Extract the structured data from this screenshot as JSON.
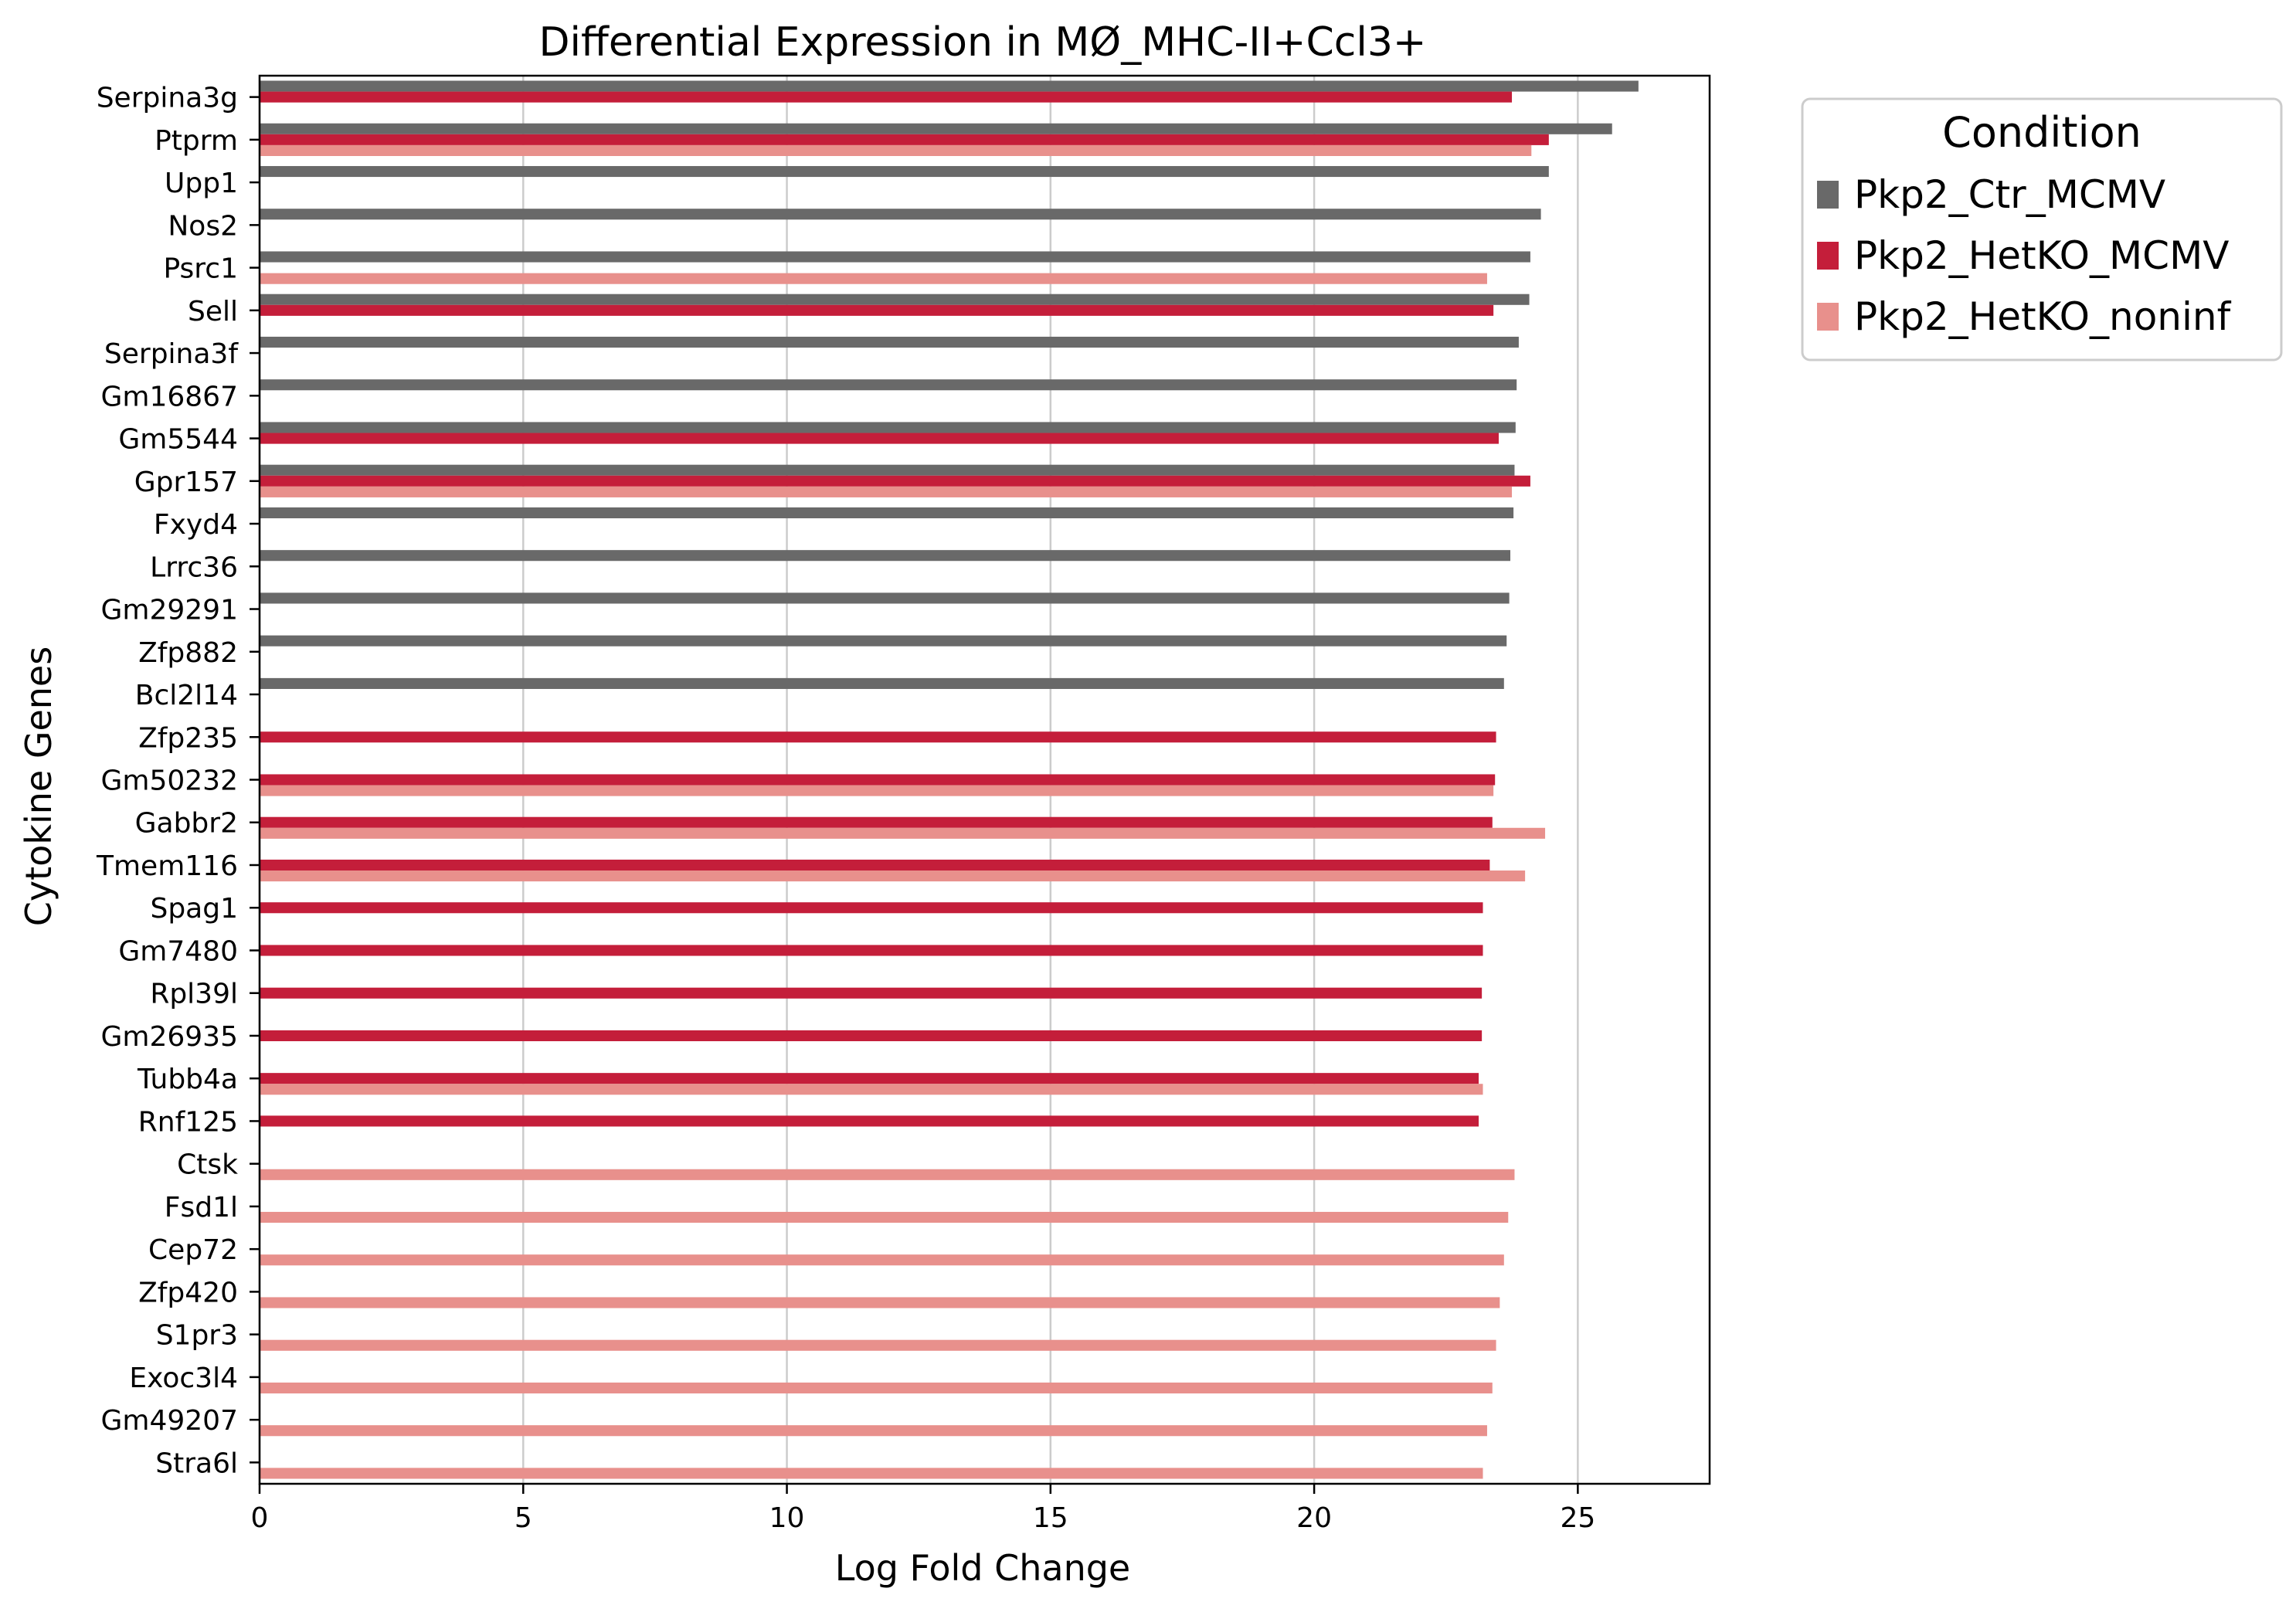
{
  "chart_data": {
    "type": "bar",
    "orientation": "horizontal",
    "title": "Differential Expression in MØ_MHC-II+Ccl3+",
    "xlabel": "Log Fold Change",
    "ylabel": "Cytokine Genes",
    "xlim": [
      0,
      27.5
    ],
    "xticks": [
      0,
      5,
      10,
      15,
      20,
      25
    ],
    "grid": "vertical",
    "legend": {
      "title": "Condition",
      "placement": "outside-top-right"
    },
    "categories": [
      "Serpina3g",
      "Ptprm",
      "Upp1",
      "Nos2",
      "Psrc1",
      "Sell",
      "Serpina3f",
      "Gm16867",
      "Gm5544",
      "Gpr157",
      "Fxyd4",
      "Lrrc36",
      "Gm29291",
      "Zfp882",
      "Bcl2l14",
      "Zfp235",
      "Gm50232",
      "Gabbr2",
      "Tmem116",
      "Spag1",
      "Gm7480",
      "Rpl39l",
      "Gm26935",
      "Tubb4a",
      "Rnf125",
      "Ctsk",
      "Fsd1l",
      "Cep72",
      "Zfp420",
      "S1pr3",
      "Exoc3l4",
      "Gm49207",
      "Stra6l"
    ],
    "series": [
      {
        "name": "Pkp2_Ctr_MCMV",
        "color": "#696969",
        "values": [
          26.15,
          25.65,
          24.45,
          24.3,
          24.1,
          24.08,
          23.88,
          23.84,
          23.82,
          23.8,
          23.78,
          23.72,
          23.7,
          23.65,
          23.6,
          null,
          null,
          null,
          null,
          null,
          null,
          null,
          null,
          null,
          null,
          null,
          null,
          null,
          null,
          null,
          null,
          null,
          null
        ]
      },
      {
        "name": "Pkp2_HetKO_MCMV",
        "color": "#c41e3a",
        "values": [
          23.75,
          24.45,
          null,
          null,
          null,
          23.4,
          null,
          null,
          23.5,
          24.1,
          null,
          null,
          null,
          null,
          null,
          23.45,
          23.43,
          23.38,
          23.33,
          23.2,
          23.2,
          23.18,
          23.18,
          23.12,
          23.12,
          null,
          null,
          null,
          null,
          null,
          null,
          null,
          null
        ]
      },
      {
        "name": "Pkp2_HetKO_noninf",
        "color": "#e8908c",
        "values": [
          null,
          24.12,
          null,
          null,
          23.28,
          null,
          null,
          null,
          null,
          23.75,
          null,
          null,
          null,
          null,
          null,
          null,
          23.4,
          24.38,
          24.0,
          null,
          null,
          null,
          null,
          23.2,
          null,
          23.8,
          23.68,
          23.6,
          23.52,
          23.45,
          23.38,
          23.28,
          23.2
        ]
      }
    ]
  }
}
